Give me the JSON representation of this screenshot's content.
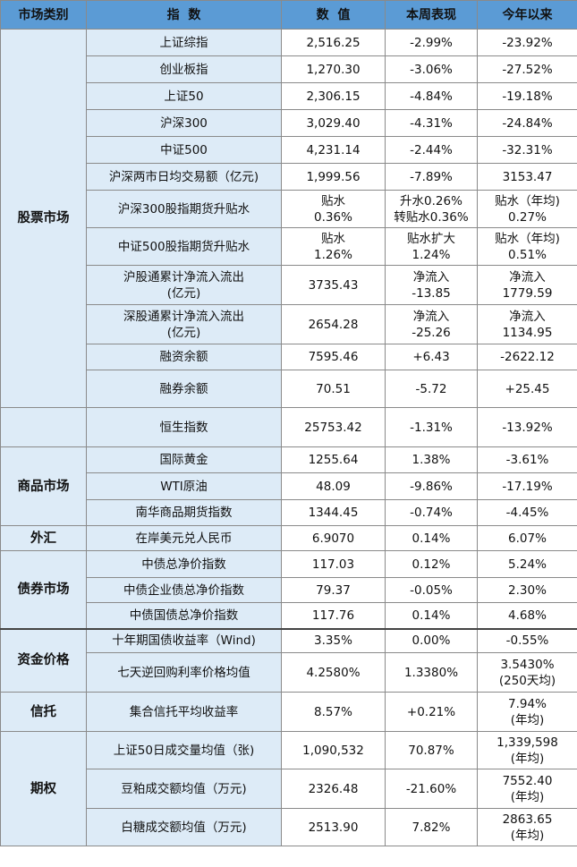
{
  "header": {
    "category": "市场类别",
    "index": "指  数",
    "value": "数  值",
    "weekly": "本周表现",
    "ytd": "今年以来"
  },
  "categories": {
    "stock": "股票市场",
    "commodity": "商品市场",
    "fx": "外汇",
    "bond": "债券市场",
    "funding": "资金价格",
    "trust": "信托",
    "options": "期权"
  },
  "rows": [
    {
      "name": "上证综指",
      "value": "2,516.25",
      "weekly": "-2.99%",
      "ytd": "-23.92%"
    },
    {
      "name": "创业板指",
      "value": "1,270.30",
      "weekly": "-3.06%",
      "ytd": "-27.52%"
    },
    {
      "name": "上证50",
      "value": "2,306.15",
      "weekly": "-4.84%",
      "ytd": "-19.18%"
    },
    {
      "name": "沪深300",
      "value": "3,029.40",
      "weekly": "-4.31%",
      "ytd": "-24.84%"
    },
    {
      "name": "中证500",
      "value": "4,231.14",
      "weekly": "-2.44%",
      "ytd": "-32.31%"
    },
    {
      "name": "沪深两市日均交易额（亿元)",
      "value": "1,999.56",
      "weekly": "-7.89%",
      "ytd": "3153.47"
    },
    {
      "name": "沪深300股指期货升贴水",
      "value": "贴水\n0.36%",
      "weekly": "升水0.26%\n转贴水0.36%",
      "ytd": "贴水（年均)\n0.27%"
    },
    {
      "name": "中证500股指期货升贴水",
      "value": "贴水\n1.26%",
      "weekly": "贴水扩大\n1.24%",
      "ytd": "贴水（年均)\n0.51%"
    },
    {
      "name": "沪股通累计净流入流出\n(亿元)",
      "value": "3735.43",
      "weekly": "净流入\n-13.85",
      "ytd": "净流入\n1779.59"
    },
    {
      "name": "深股通累计净流入流出\n(亿元)",
      "value": "2654.28",
      "weekly": "净流入\n-25.26",
      "ytd": "净流入\n1134.95"
    },
    {
      "name": "融资余额",
      "value": "7595.46",
      "weekly": "+6.43",
      "ytd": "-2622.12"
    },
    {
      "name": "融券余额",
      "value": "70.51",
      "weekly": "-5.72",
      "ytd": "+25.45"
    },
    {
      "name": "恒生指数",
      "value": "25753.42",
      "weekly": "-1.31%",
      "ytd": "-13.92%"
    },
    {
      "name": "国际黄金",
      "value": "1255.64",
      "weekly": "1.38%",
      "ytd": "-3.61%"
    },
    {
      "name": "WTI原油",
      "value": "48.09",
      "weekly": "-9.86%",
      "ytd": "-17.19%"
    },
    {
      "name": "南华商品期货指数",
      "value": "1344.45",
      "weekly": "-0.74%",
      "ytd": "-4.45%"
    },
    {
      "name": "在岸美元兑人民币",
      "value": "6.9070",
      "weekly": "0.14%",
      "ytd": "6.07%"
    },
    {
      "name": "中债总净价指数",
      "value": "117.03",
      "weekly": "0.12%",
      "ytd": "5.24%"
    },
    {
      "name": "中债企业债总净价指数",
      "value": "79.37",
      "weekly": "-0.05%",
      "ytd": "2.30%"
    },
    {
      "name": "中债国债总净价指数",
      "value": "117.76",
      "weekly": "0.14%",
      "ytd": "4.68%"
    },
    {
      "name": "十年期国债收益率（Wind)",
      "value": "3.35%",
      "weekly": "0.00%",
      "ytd": "-0.55%"
    },
    {
      "name": "七天逆回购利率价格均值",
      "value": "4.2580%",
      "weekly": "1.3380%",
      "ytd": "3.5430%\n(250天均)"
    },
    {
      "name": "集合信托平均收益率",
      "value": "8.57%",
      "weekly": "+0.21%",
      "ytd": "7.94%\n(年均)"
    },
    {
      "name": "上证50日成交量均值（张)",
      "value": "1,090,532",
      "weekly": "70.87%",
      "ytd": "1,339,598\n(年均)"
    },
    {
      "name": "豆粕成交额均值（万元)",
      "value": "2326.48",
      "weekly": "-21.60%",
      "ytd": "7552.40\n(年均)"
    },
    {
      "name": "白糖成交额均值（万元)",
      "value": "2513.90",
      "weekly": "7.82%",
      "ytd": "2863.65\n(年均)"
    }
  ]
}
